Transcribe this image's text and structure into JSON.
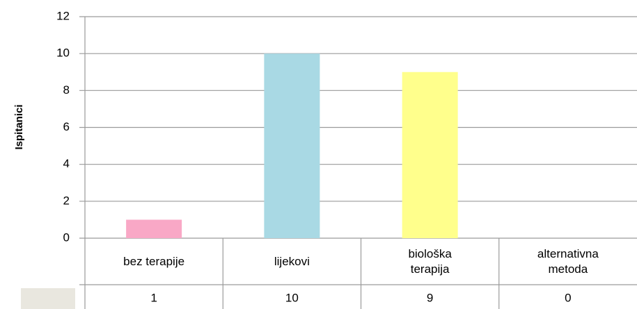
{
  "chart_data": {
    "type": "bar",
    "y_label": "Ispitanici",
    "categories": [
      "bez terapije",
      "lijekovi",
      "biološka terapija",
      "alternativna metoda"
    ],
    "values": [
      1,
      10,
      9,
      0
    ],
    "colors": [
      "#f9a8c6",
      "#a9d9e4",
      "#ffff8c",
      "#cccccc"
    ],
    "ylim": [
      0,
      12
    ],
    "yticks": [
      0,
      2,
      4,
      6,
      8,
      10,
      12
    ],
    "grid": true,
    "data_table": true
  }
}
